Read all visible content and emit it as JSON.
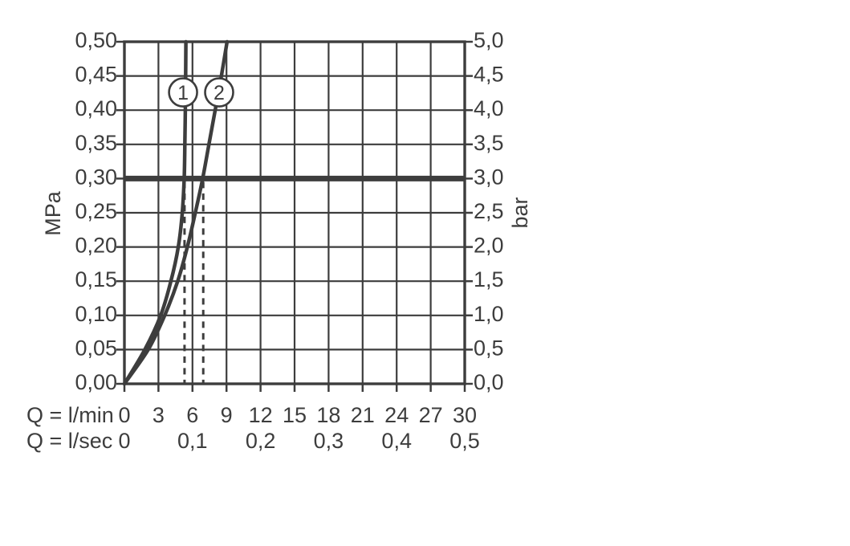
{
  "chart_data": {
    "type": "line",
    "title": "",
    "grid": true,
    "legend_position": "none",
    "colors": {
      "line": "#3d3d3d",
      "text": "#3d3d3d",
      "background": "#ffffff"
    },
    "x_axis": {
      "primary_label": "Q = l/min",
      "primary_tick_labels": [
        "0",
        "3",
        "6",
        "9",
        "12",
        "15",
        "18",
        "21",
        "24",
        "27",
        "30"
      ],
      "primary_tick_values": [
        0,
        3,
        6,
        9,
        12,
        15,
        18,
        21,
        24,
        27,
        30
      ],
      "secondary_label": "Q = l/sec",
      "secondary_tick_labels": [
        "0",
        "0,1",
        "0,2",
        "0,3",
        "0,4",
        "0,5"
      ],
      "secondary_tick_values": [
        0,
        6,
        12,
        18,
        24,
        30
      ],
      "range": [
        0,
        30
      ],
      "gridline_step": 3
    },
    "y_axis_left": {
      "label": "MPa",
      "tick_labels": [
        "0,00",
        "0,05",
        "0,10",
        "0,15",
        "0,20",
        "0,25",
        "0,30",
        "0,35",
        "0,40",
        "0,45",
        "0,50"
      ],
      "tick_values": [
        0,
        0.05,
        0.1,
        0.15,
        0.2,
        0.25,
        0.3,
        0.35,
        0.4,
        0.45,
        0.5
      ],
      "range": [
        0,
        0.5
      ]
    },
    "y_axis_right": {
      "label": "bar",
      "tick_labels": [
        "0,0",
        "0,5",
        "1,0",
        "1,5",
        "2,0",
        "2,5",
        "3,0",
        "3,5",
        "4,0",
        "4,5",
        "5,0"
      ],
      "tick_values_bar": [
        0,
        0.5,
        1,
        1.5,
        2,
        2.5,
        3,
        3.5,
        4,
        4.5,
        5
      ]
    },
    "reference_line": {
      "mpa": 0.3,
      "bar": 3.0
    },
    "series": [
      {
        "name": "1",
        "marker_label": "1",
        "marker_at": {
          "l_min": 5.17,
          "mpa": 0.426
        },
        "points_l_min_mpa": [
          [
            0,
            0
          ],
          [
            1.8,
            0.05
          ],
          [
            3.2,
            0.1
          ],
          [
            4.1,
            0.15
          ],
          [
            4.75,
            0.2
          ],
          [
            5.1,
            0.25
          ],
          [
            5.27,
            0.3
          ],
          [
            5.33,
            0.35
          ],
          [
            5.37,
            0.4
          ],
          [
            5.4,
            0.45
          ],
          [
            5.42,
            0.5
          ]
        ]
      },
      {
        "name": "2",
        "marker_label": "2",
        "marker_at": {
          "l_min": 8.35,
          "mpa": 0.426
        },
        "points_l_min_mpa": [
          [
            0,
            0
          ],
          [
            2.1,
            0.05
          ],
          [
            3.55,
            0.1
          ],
          [
            4.7,
            0.15
          ],
          [
            5.55,
            0.2
          ],
          [
            6.25,
            0.25
          ],
          [
            6.9,
            0.3
          ],
          [
            7.45,
            0.35
          ],
          [
            8.0,
            0.4
          ],
          [
            8.55,
            0.45
          ],
          [
            9.05,
            0.5
          ]
        ]
      }
    ],
    "drop_lines_l_min": [
      5.3,
      6.95
    ]
  }
}
